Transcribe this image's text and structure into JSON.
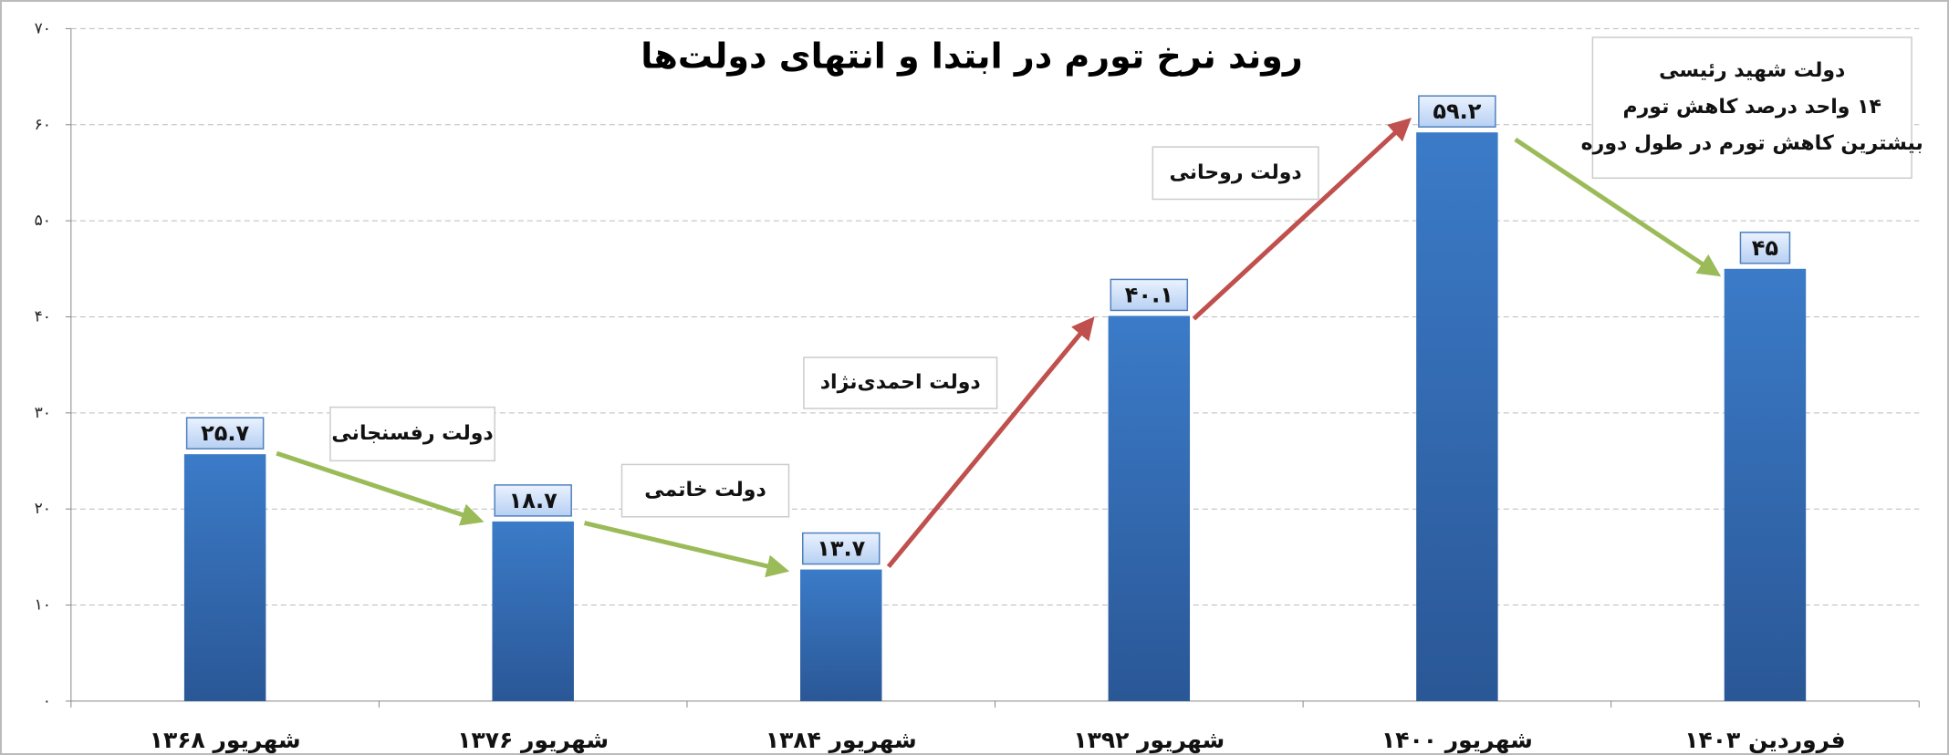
{
  "chart_data": {
    "type": "bar",
    "title": "روند نرخ تورم در ابتدا و انتهای دولت‌ها",
    "categories": [
      "شهریور ۱۳۶۸",
      "شهریور ۱۳۷۶",
      "شهریور ۱۳۸۴",
      "شهریور ۱۳۹۲",
      "شهریور ۱۴۰۰",
      "فروردین ۱۴۰۳"
    ],
    "values": [
      25.7,
      18.7,
      13.7,
      40.1,
      59.2,
      45
    ],
    "value_labels": [
      "۲۵.۷",
      "۱۸.۷",
      "۱۳.۷",
      "۴۰.۱",
      "۵۹.۲",
      "۴۵"
    ],
    "color": "#3b7bc8",
    "ylim": [
      0,
      70
    ],
    "yticks": [
      {
        "value": 0,
        "label": "۰"
      },
      {
        "value": 10,
        "label": "۱۰"
      },
      {
        "value": 20,
        "label": "۲۰"
      },
      {
        "value": 30,
        "label": "۳۰"
      },
      {
        "value": 40,
        "label": "۴۰"
      },
      {
        "value": 50,
        "label": "۵۰"
      },
      {
        "value": 60,
        "label": "۶۰"
      },
      {
        "value": 70,
        "label": "۷۰"
      }
    ],
    "grid": true,
    "annotations": [
      {
        "lines": [
          "دولت رفسنجانی"
        ]
      },
      {
        "lines": [
          "دولت خاتمی"
        ]
      },
      {
        "lines": [
          "دولت احمدی‌نژاد"
        ]
      },
      {
        "lines": [
          "دولت روحانی"
        ]
      },
      {
        "lines": [
          "دولت شهید رئیسی",
          "۱۴ واحد درصد کاهش تورم",
          "بیشترین کاهش تورم در طول دوره"
        ]
      }
    ]
  }
}
